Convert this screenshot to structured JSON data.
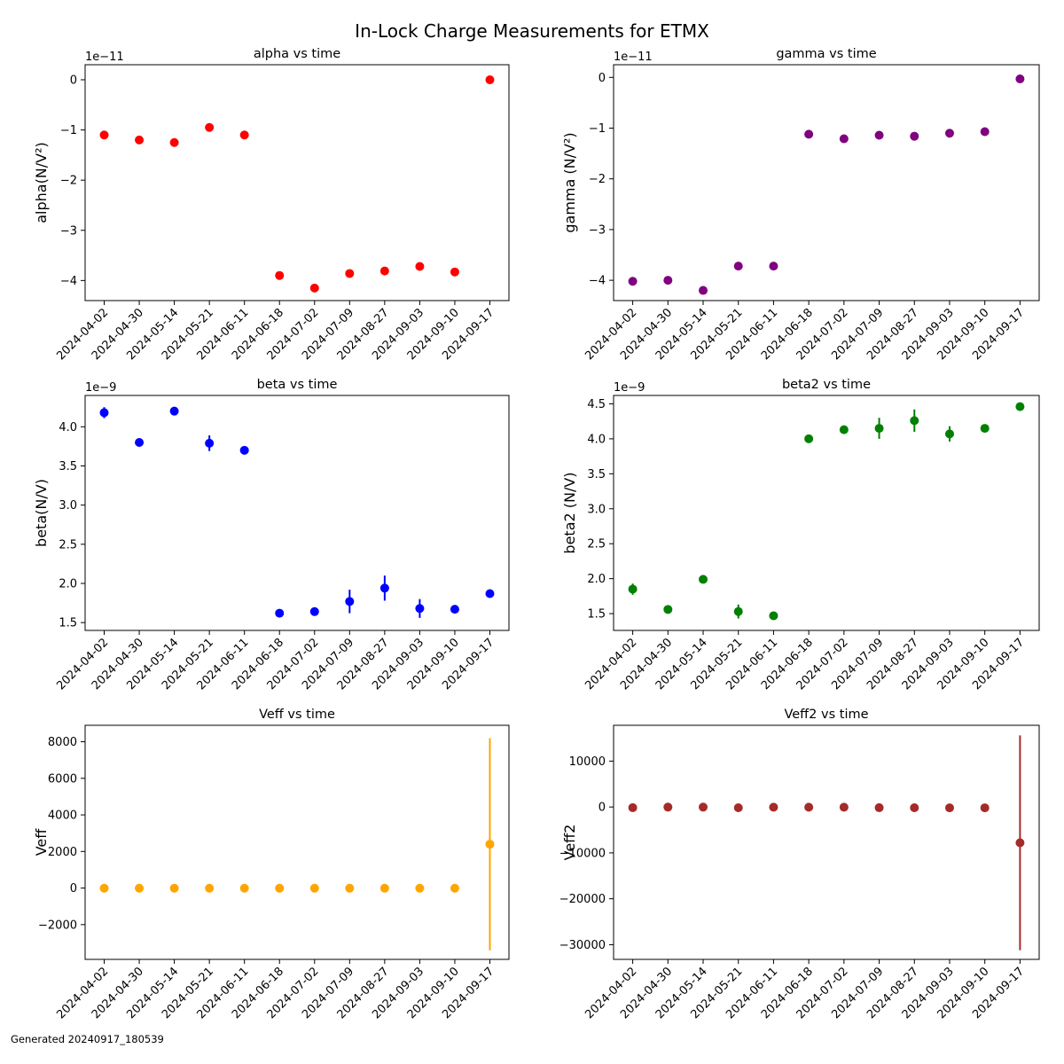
{
  "figure": {
    "title": "In-Lock Charge Measurements for ETMX",
    "footer": "Generated 20240917_180539"
  },
  "chart_data": [
    {
      "type": "scatter",
      "title": "alpha vs time",
      "ylabel": "alpha(N/V²)",
      "offset_text": "1e−11",
      "color": "#ff0000",
      "x": [
        "2024-04-02",
        "2024-04-30",
        "2024-05-14",
        "2024-05-21",
        "2024-06-11",
        "2024-06-18",
        "2024-07-02",
        "2024-07-09",
        "2024-08-27",
        "2024-09-03",
        "2024-09-10",
        "2024-09-17"
      ],
      "x_tick_labels": [
        "2024-04-02",
        "2024-04-30",
        "2024-05-14",
        "2024-05-21",
        "2024-06-11",
        "2024-06-18",
        "2024-07-02",
        "2024-07-09",
        "2024-08-27",
        "2024-09-03",
        "2024-09-10",
        "2024-09-17"
      ],
      "y": [
        -1.1e-11,
        -1.2e-11,
        -1.25e-11,
        -9.5e-12,
        -1.1e-11,
        -3.9e-11,
        -4.15e-11,
        -3.86e-11,
        -3.81e-11,
        -3.72e-11,
        -3.83e-11,
        0
      ],
      "yerr": [
        2e-13,
        2e-13,
        2e-13,
        2e-13,
        2e-13,
        2e-13,
        2e-13,
        2e-13,
        2e-13,
        2e-13,
        2e-13,
        2e-13
      ],
      "ylim": [
        -4.4e-11,
        3e-12
      ],
      "yticks": [
        0,
        -1e-11,
        -2e-11,
        -3e-11,
        -4e-11
      ],
      "ytick_labels": [
        "0",
        "−1",
        "−2",
        "−3",
        "−4"
      ],
      "grid": false
    },
    {
      "type": "scatter",
      "title": "gamma vs time",
      "ylabel": "gamma (N/V²)",
      "offset_text": "1e−11",
      "color": "#800080",
      "x": [
        "2024-04-02",
        "2024-04-30",
        "2024-05-14",
        "2024-05-21",
        "2024-06-11",
        "2024-06-18",
        "2024-07-02",
        "2024-07-09",
        "2024-08-27",
        "2024-09-03",
        "2024-09-10",
        "2024-09-17"
      ],
      "x_tick_labels": [
        "2024-04-02",
        "2024-04-30",
        "2024-05-14",
        "2024-05-21",
        "2024-06-11",
        "2024-06-18",
        "2024-07-02",
        "2024-07-09",
        "2024-08-27",
        "2024-09-03",
        "2024-09-10",
        "2024-09-17"
      ],
      "y": [
        -4.02e-11,
        -4e-11,
        -4.2e-11,
        -3.72e-11,
        -3.72e-11,
        -1.12e-11,
        -1.21e-11,
        -1.14e-11,
        -1.16e-11,
        -1.1e-11,
        -1.07e-11,
        -3e-13
      ],
      "yerr": [
        2e-13,
        2e-13,
        2e-13,
        2e-13,
        2e-13,
        2e-13,
        2e-13,
        2e-13,
        2e-13,
        2e-13,
        2e-13,
        2e-13
      ],
      "ylim": [
        -4.4e-11,
        2.5e-12
      ],
      "yticks": [
        0,
        -1e-11,
        -2e-11,
        -3e-11,
        -4e-11
      ],
      "ytick_labels": [
        "0",
        "−1",
        "−2",
        "−3",
        "−4"
      ],
      "grid": false
    },
    {
      "type": "scatter",
      "title": "beta vs time",
      "ylabel": "beta(N/V)",
      "offset_text": "1e−9",
      "color": "#0000ff",
      "x": [
        "2024-04-02",
        "2024-04-30",
        "2024-05-14",
        "2024-05-21",
        "2024-06-11",
        "2024-06-18",
        "2024-07-02",
        "2024-07-09",
        "2024-08-27",
        "2024-09-03",
        "2024-09-10",
        "2024-09-17"
      ],
      "x_tick_labels": [
        "2024-04-02",
        "2024-04-30",
        "2024-05-14",
        "2024-05-21",
        "2024-06-11",
        "2024-06-18",
        "2024-07-02",
        "2024-07-09",
        "2024-08-27",
        "2024-09-03",
        "2024-09-10",
        "2024-09-17"
      ],
      "y": [
        4.18e-09,
        3.8e-09,
        4.2e-09,
        3.79e-09,
        3.7e-09,
        1.62e-09,
        1.64e-09,
        1.77e-09,
        1.94e-09,
        1.68e-09,
        1.67e-09,
        1.87e-09
      ],
      "yerr": [
        7e-11,
        2e-11,
        2e-11,
        1e-10,
        2e-11,
        2e-11,
        2e-11,
        1.5e-10,
        1.6e-10,
        1.2e-10,
        2e-11,
        2e-11
      ],
      "ylim": [
        1.4e-09,
        4.4e-09
      ],
      "yticks": [
        1.5e-09,
        2e-09,
        2.5e-09,
        3e-09,
        3.5e-09,
        4e-09
      ],
      "ytick_labels": [
        "1.5",
        "2.0",
        "2.5",
        "3.0",
        "3.5",
        "4.0"
      ],
      "grid": false
    },
    {
      "type": "scatter",
      "title": "beta2 vs time",
      "ylabel": "beta2 (N/V)",
      "offset_text": "1e−9",
      "color": "#008000",
      "x": [
        "2024-04-02",
        "2024-04-30",
        "2024-05-14",
        "2024-05-21",
        "2024-06-11",
        "2024-06-18",
        "2024-07-02",
        "2024-07-09",
        "2024-08-27",
        "2024-09-03",
        "2024-09-10",
        "2024-09-17"
      ],
      "x_tick_labels": [
        "2024-04-02",
        "2024-04-30",
        "2024-05-14",
        "2024-05-21",
        "2024-06-11",
        "2024-06-18",
        "2024-07-02",
        "2024-07-09",
        "2024-08-27",
        "2024-09-03",
        "2024-09-10",
        "2024-09-17"
      ],
      "y": [
        1.85e-09,
        1.56e-09,
        1.99e-09,
        1.53e-09,
        1.47e-09,
        4e-09,
        4.13e-09,
        4.15e-09,
        4.26e-09,
        4.07e-09,
        4.15e-09,
        4.46e-09
      ],
      "yerr": [
        8e-11,
        2e-11,
        2e-11,
        1e-10,
        2e-11,
        2e-11,
        2e-11,
        1.5e-10,
        1.6e-10,
        1.1e-10,
        2e-11,
        2e-11
      ],
      "ylim": [
        1.26e-09,
        4.62e-09
      ],
      "yticks": [
        1.5e-09,
        2e-09,
        2.5e-09,
        3e-09,
        3.5e-09,
        4e-09,
        4.5e-09
      ],
      "ytick_labels": [
        "1.5",
        "2.0",
        "2.5",
        "3.0",
        "3.5",
        "4.0",
        "4.5"
      ],
      "grid": false
    },
    {
      "type": "scatter",
      "title": "Veff vs time",
      "ylabel": "Veff",
      "offset_text": "",
      "color": "#ffa500",
      "x": [
        "2024-04-02",
        "2024-04-30",
        "2024-05-14",
        "2024-05-21",
        "2024-06-11",
        "2024-06-18",
        "2024-07-02",
        "2024-07-09",
        "2024-08-27",
        "2024-09-03",
        "2024-09-10",
        "2024-09-17"
      ],
      "x_tick_labels": [
        "2024-04-02",
        "2024-04-30",
        "2024-05-14",
        "2024-05-21",
        "2024-06-11",
        "2024-06-18",
        "2024-07-02",
        "2024-07-09",
        "2024-08-27",
        "2024-09-03",
        "2024-09-10",
        "2024-09-17"
      ],
      "y": [
        -10,
        -10,
        -10,
        -10,
        -10,
        -10,
        -10,
        -10,
        -10,
        -10,
        -10,
        2400
      ],
      "yerr": [
        0,
        0,
        0,
        0,
        0,
        0,
        0,
        0,
        0,
        0,
        0,
        5800
      ],
      "ylim": [
        -3900,
        8900
      ],
      "yticks": [
        -2000,
        0,
        2000,
        4000,
        6000,
        8000
      ],
      "ytick_labels": [
        "−2000",
        "0",
        "2000",
        "4000",
        "6000",
        "8000"
      ],
      "grid": false
    },
    {
      "type": "scatter",
      "title": "Veff2 vs time",
      "ylabel": "Veff2",
      "offset_text": "",
      "color": "#a52a2a",
      "x": [
        "2024-04-02",
        "2024-04-30",
        "2024-05-14",
        "2024-05-21",
        "2024-06-11",
        "2024-06-18",
        "2024-07-02",
        "2024-07-09",
        "2024-08-27",
        "2024-09-03",
        "2024-09-10",
        "2024-09-17"
      ],
      "x_tick_labels": [
        "2024-04-02",
        "2024-04-30",
        "2024-05-14",
        "2024-05-21",
        "2024-06-11",
        "2024-06-18",
        "2024-07-02",
        "2024-07-09",
        "2024-08-27",
        "2024-09-03",
        "2024-09-10",
        "2024-09-17"
      ],
      "y": [
        -150,
        -30,
        -30,
        -170,
        -50,
        -50,
        -50,
        -150,
        -170,
        -180,
        -180,
        -7800
      ],
      "yerr": [
        0,
        0,
        0,
        0,
        0,
        0,
        0,
        0,
        0,
        0,
        0,
        23400
      ],
      "ylim": [
        -33200,
        17800
      ],
      "yticks": [
        -30000,
        -20000,
        -10000,
        0,
        10000
      ],
      "ytick_labels": [
        "−30000",
        "−20000",
        "−10000",
        "0",
        "10000"
      ],
      "grid": false
    }
  ]
}
